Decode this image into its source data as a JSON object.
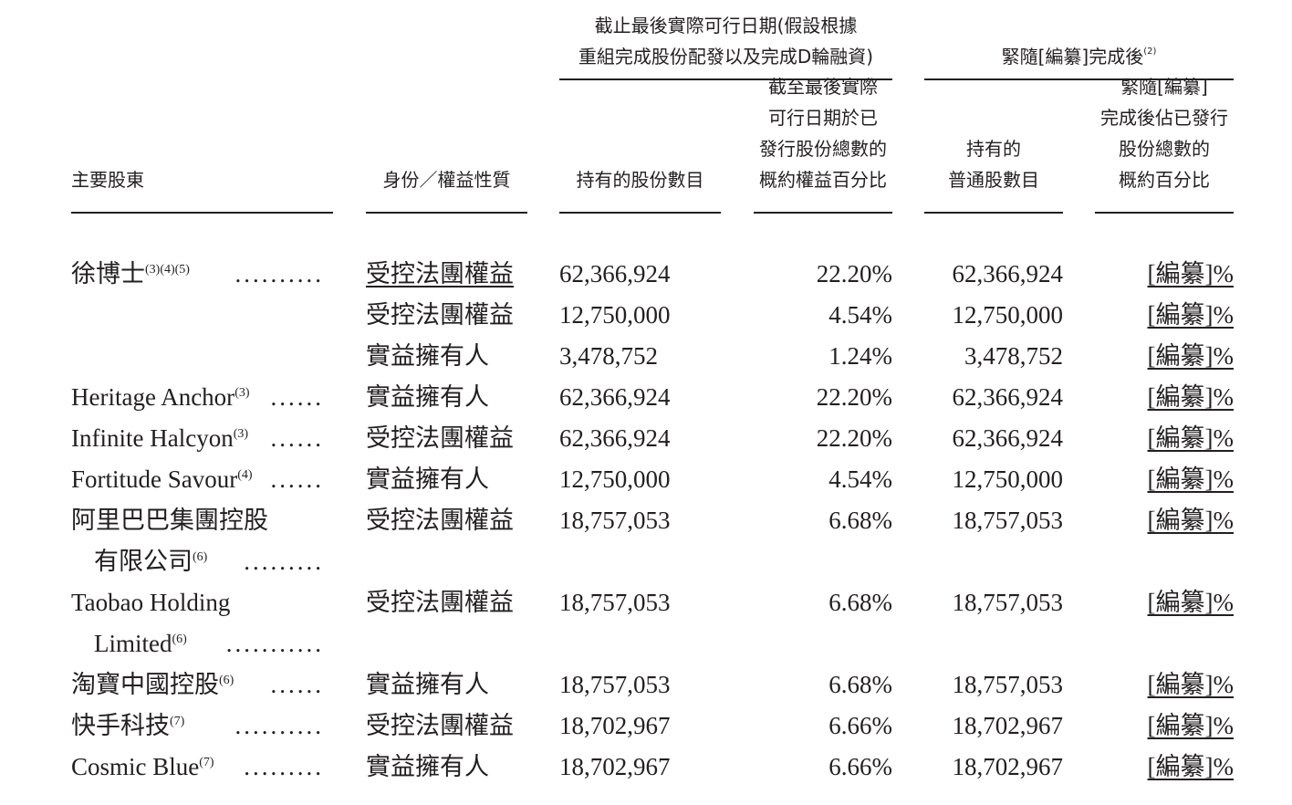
{
  "table": {
    "group_headers": [
      {
        "lines": [
          "截止最後實際可行日期(假設根據",
          "重組完成股份配發以及完成D輪融資)"
        ]
      },
      {
        "lines": [
          "緊隨[編纂]完成後"
        ],
        "note": "(2)"
      }
    ],
    "columns": [
      {
        "lines": [
          "主要股東"
        ]
      },
      {
        "lines": [
          "身份／權益性質"
        ]
      },
      {
        "lines": [
          "持有的股份數目"
        ]
      },
      {
        "lines": [
          "截至最後實際",
          "可行日期於已",
          "發行股份總數的",
          "概約權益百分比"
        ]
      },
      {
        "lines": [
          "持有的",
          "普通股數目"
        ]
      },
      {
        "lines": [
          "緊隨[編纂]",
          "完成後佔已發行",
          "股份總數的",
          "概約百分比"
        ]
      }
    ],
    "rows": [
      {
        "name_lines": [
          "徐博士"
        ],
        "note": "(3)(4)(5)",
        "dots": "..........",
        "capacity": "受控法團權益",
        "shares": "62,366,924",
        "pct": "22.20%",
        "post_shares": "62,366,924",
        "post_pct": "[編纂]%"
      },
      {
        "capacity": "受控法團權益",
        "shares": "12,750,000",
        "pct": "4.54%",
        "post_shares": "12,750,000",
        "post_pct": "[編纂]%"
      },
      {
        "capacity": "實益擁有人",
        "shares": "3,478,752",
        "pct": "1.24%",
        "post_shares": "3,478,752",
        "post_pct": "[編纂]%"
      },
      {
        "name_lines": [
          "Heritage Anchor"
        ],
        "note": "(3)",
        "dots": "......",
        "capacity": "實益擁有人",
        "shares": "62,366,924",
        "pct": "22.20%",
        "post_shares": "62,366,924",
        "post_pct": "[編纂]%"
      },
      {
        "name_lines": [
          "Infinite Halcyon"
        ],
        "note": "(3)",
        "dots": "......",
        "capacity": "受控法團權益",
        "shares": "62,366,924",
        "pct": "22.20%",
        "post_shares": "62,366,924",
        "post_pct": "[編纂]%"
      },
      {
        "name_lines": [
          "Fortitude Savour"
        ],
        "note": "(4)",
        "dots": "......",
        "capacity": "實益擁有人",
        "shares": "12,750,000",
        "pct": "4.54%",
        "post_shares": "12,750,000",
        "post_pct": "[編纂]%"
      },
      {
        "name_lines": [
          "阿里巴巴集團控股",
          "有限公司"
        ],
        "note": "(6)",
        "dots": ".........",
        "capacity": "受控法團權益",
        "shares": "18,757,053",
        "pct": "6.68%",
        "post_shares": "18,757,053",
        "post_pct": "[編纂]%"
      },
      {
        "name_lines": [
          "Taobao Holding",
          "Limited"
        ],
        "note": "(6)",
        "dots": "...........",
        "capacity": "受控法團權益",
        "shares": "18,757,053",
        "pct": "6.68%",
        "post_shares": "18,757,053",
        "post_pct": "[編纂]%"
      },
      {
        "name_lines": [
          "淘寶中國控股"
        ],
        "note": "(6)",
        "dots": "......",
        "capacity": "實益擁有人",
        "shares": "18,757,053",
        "pct": "6.68%",
        "post_shares": "18,757,053",
        "post_pct": "[編纂]%"
      },
      {
        "name_lines": [
          "快手科技"
        ],
        "note": "(7)",
        "dots": "..........",
        "capacity": "受控法團權益",
        "shares": "18,702,967",
        "pct": "6.66%",
        "post_shares": "18,702,967",
        "post_pct": "[編纂]%"
      },
      {
        "name_lines": [
          "Cosmic Blue"
        ],
        "note": "(7)",
        "dots": ".........",
        "capacity": "實益擁有人",
        "shares": "18,702,967",
        "pct": "6.66%",
        "post_shares": "18,702,967",
        "post_pct": "[編纂]%"
      }
    ]
  }
}
